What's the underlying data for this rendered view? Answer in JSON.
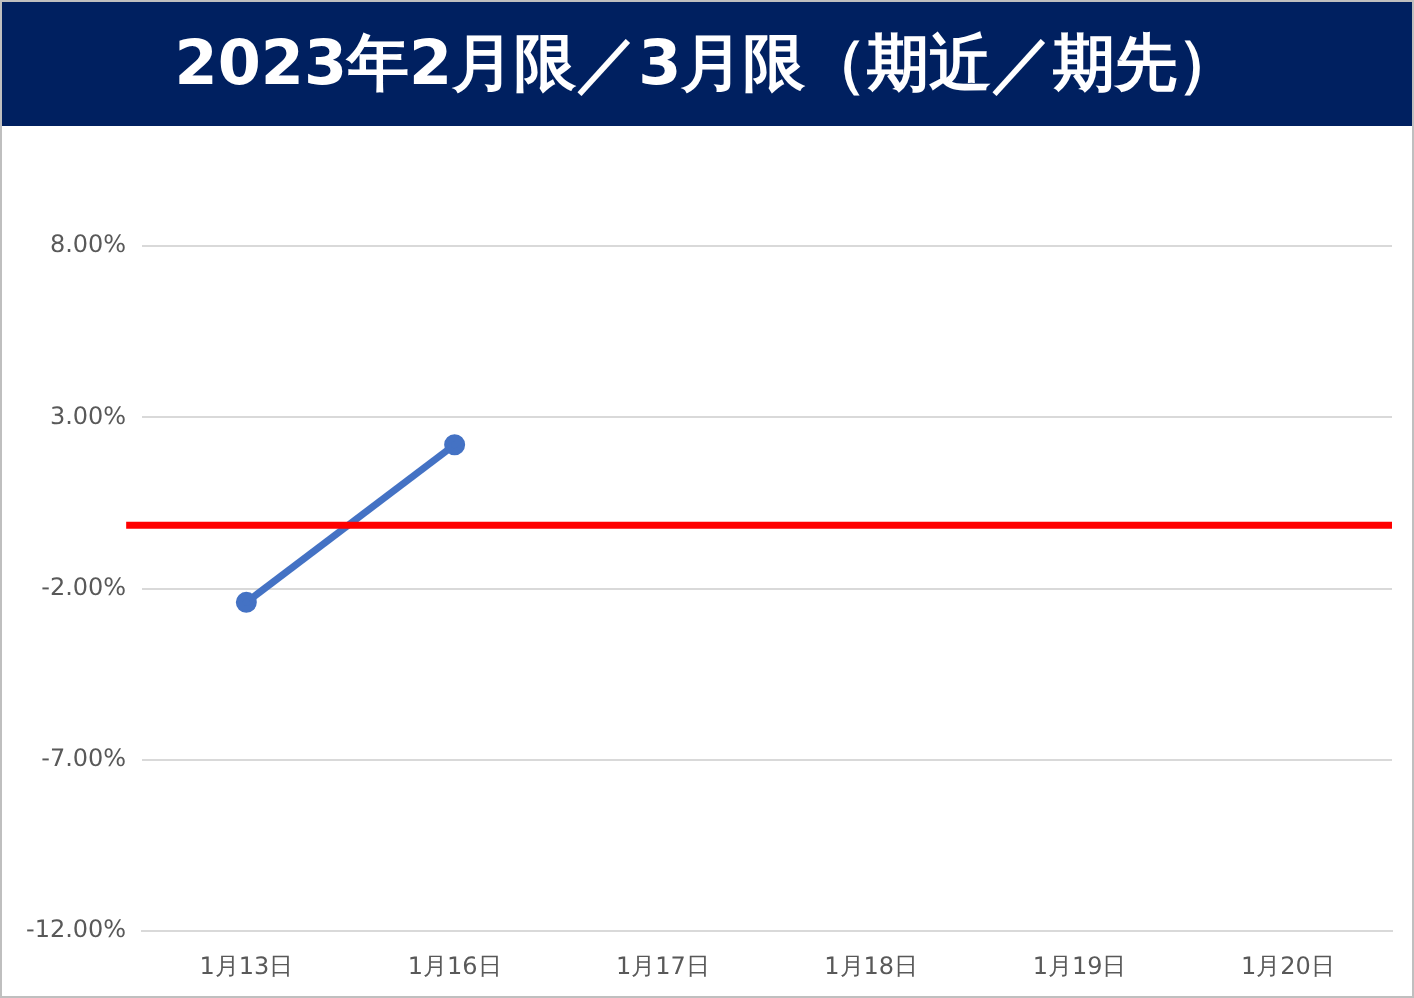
{
  "chart_data": {
    "type": "line",
    "title": "2023年2月限／3月限（期近／期先）",
    "categories": [
      "1月13日",
      "1月16日",
      "1月17日",
      "1月18日",
      "1月19日",
      "1月20日"
    ],
    "series": [
      {
        "color": "#4472c4",
        "marker": "circle",
        "values": [
          -2.4,
          2.2,
          null,
          null,
          null,
          null
        ]
      }
    ],
    "ref_lines": [
      {
        "axis": "y",
        "value": -0.15,
        "color": "#ff0000",
        "line_style": "solid"
      }
    ],
    "ylim": [
      -12,
      8
    ],
    "yticks": [
      {
        "value": -12,
        "label": "-12.00%"
      },
      {
        "value": -7,
        "label": "-7.00%"
      },
      {
        "value": -2,
        "label": "-2.00%"
      },
      {
        "value": 3,
        "label": "3.00%"
      },
      {
        "value": 8,
        "label": "8.00%"
      }
    ],
    "grid": "y",
    "legend": false
  }
}
